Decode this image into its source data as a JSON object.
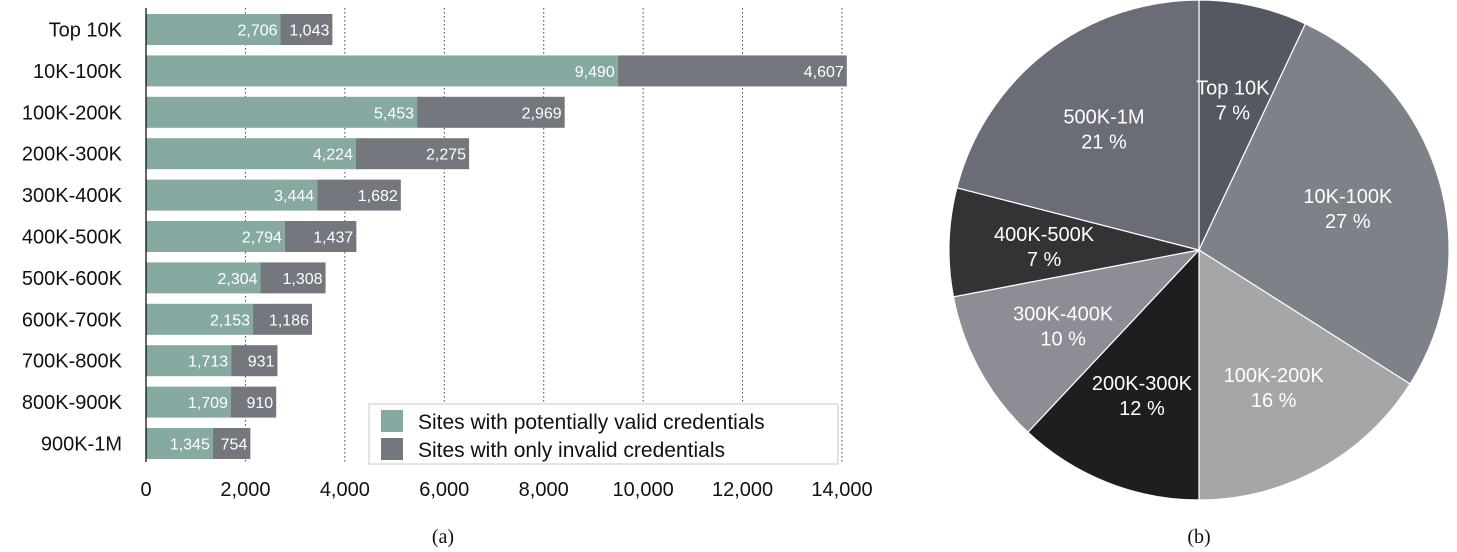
{
  "chart_data": [
    {
      "type": "bar",
      "orientation": "horizontal",
      "stacked": true,
      "caption": "(a)",
      "categories": [
        "Top 10K",
        "10K-100K",
        "100K-200K",
        "200K-300K",
        "300K-400K",
        "400K-500K",
        "500K-600K",
        "600K-700K",
        "700K-800K",
        "800K-900K",
        "900K-1M"
      ],
      "series": [
        {
          "name": "Sites with potentially valid credentials",
          "color": "#86aaa2",
          "values": [
            2706,
            9490,
            5453,
            4224,
            3444,
            2794,
            2304,
            2153,
            1713,
            1709,
            1345
          ],
          "labels": [
            "2,706",
            "9,490",
            "5,453",
            "4,224",
            "3,444",
            "2,794",
            "2,304",
            "2,153",
            "1,713",
            "1,709",
            "1,345"
          ]
        },
        {
          "name": "Sites with only invalid credentials",
          "color": "#75777f",
          "values": [
            1043,
            4607,
            2969,
            2275,
            1682,
            1437,
            1308,
            1186,
            931,
            910,
            754
          ],
          "labels": [
            "1,043",
            "4,607",
            "2,969",
            "2,275",
            "1,682",
            "1,437",
            "1,308",
            "1,186",
            "931",
            "910",
            "754"
          ]
        }
      ],
      "xlim": [
        0,
        14000
      ],
      "xticks": [
        0,
        2000,
        4000,
        6000,
        8000,
        10000,
        12000,
        14000
      ],
      "xtick_labels": [
        "0",
        "2,000",
        "4,000",
        "6,000",
        "8,000",
        "10,000",
        "12,000",
        "14,000"
      ],
      "grid": "vertical dotted",
      "legend_position": "bottom-right"
    },
    {
      "type": "pie",
      "caption": "(b)",
      "slices": [
        {
          "label": "Top 10K",
          "pct_label": "7 %",
          "value": 7,
          "color": "#545861"
        },
        {
          "label": "10K-100K",
          "pct_label": "27 %",
          "value": 27,
          "color": "#7d8188"
        },
        {
          "label": "100K-200K",
          "pct_label": "16 %",
          "value": 16,
          "color": "#a5a6a8"
        },
        {
          "label": "200K-300K",
          "pct_label": "12 %",
          "value": 12,
          "color": "#1e1e20"
        },
        {
          "label": "300K-400K",
          "pct_label": "10 %",
          "value": 10,
          "color": "#8c8d95"
        },
        {
          "label": "400K-500K",
          "pct_label": "7 %",
          "value": 7,
          "color": "#333335"
        },
        {
          "label": "500K-1M",
          "pct_label": "21 %",
          "value": 21,
          "color": "#6a6d75"
        }
      ]
    }
  ]
}
